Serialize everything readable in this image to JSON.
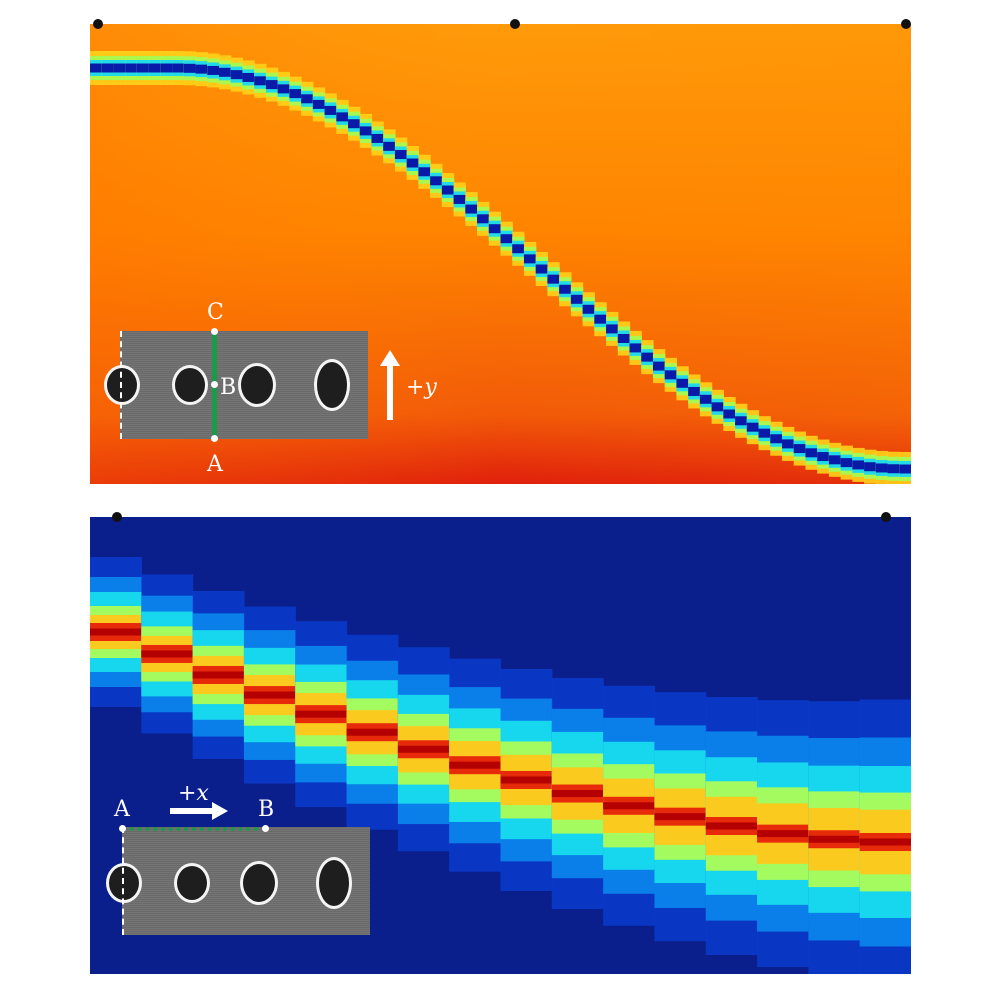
{
  "top_panel": {
    "inset_labels": {
      "a": "A",
      "b": "B",
      "c": "C"
    },
    "direction_label": "+y"
  },
  "bottom_panel": {
    "inset_labels": {
      "a": "A",
      "b": "B"
    },
    "direction_label": "+x"
  },
  "colors": {
    "top_background": "#ff8c00",
    "top_dark": "#e53a0c",
    "top_band_core": "#0a1aa8",
    "bottom_background": "#0a1f8c",
    "bottom_band_core": "#c00000",
    "inset_gray": "#6e6e6e",
    "path_green": "#1a9a4a"
  }
}
